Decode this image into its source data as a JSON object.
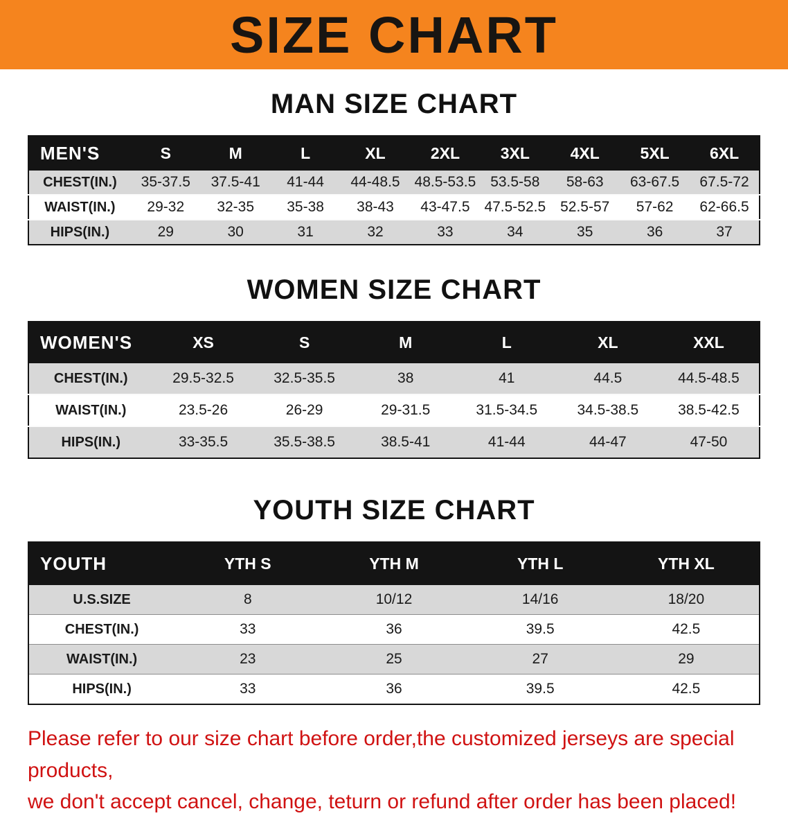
{
  "banner": {
    "title": "SIZE CHART",
    "bg_color": "#f5841e"
  },
  "sections": {
    "men": {
      "heading": "MAN SIZE CHART",
      "table": {
        "header_label": "MEN'S",
        "columns": [
          "S",
          "M",
          "L",
          "XL",
          "2XL",
          "3XL",
          "4XL",
          "5XL",
          "6XL"
        ],
        "rows": [
          {
            "label": "CHEST(IN.)",
            "values": [
              "35-37.5",
              "37.5-41",
              "41-44",
              "44-48.5",
              "48.5-53.5",
              "53.5-58",
              "58-63",
              "63-67.5",
              "67.5-72"
            ]
          },
          {
            "label": "WAIST(IN.)",
            "values": [
              "29-32",
              "32-35",
              "35-38",
              "38-43",
              "43-47.5",
              "47.5-52.5",
              "52.5-57",
              "57-62",
              "62-66.5"
            ]
          },
          {
            "label": "HIPS(IN.)",
            "values": [
              "29",
              "30",
              "31",
              "32",
              "33",
              "34",
              "35",
              "36",
              "37"
            ]
          }
        ]
      }
    },
    "women": {
      "heading": "WOMEN SIZE CHART",
      "table": {
        "header_label": "WOMEN'S",
        "columns": [
          "XS",
          "S",
          "M",
          "L",
          "XL",
          "XXL"
        ],
        "rows": [
          {
            "label": "CHEST(IN.)",
            "values": [
              "29.5-32.5",
              "32.5-35.5",
              "38",
              "41",
              "44.5",
              "44.5-48.5"
            ]
          },
          {
            "label": "WAIST(IN.)",
            "values": [
              "23.5-26",
              "26-29",
              "29-31.5",
              "31.5-34.5",
              "34.5-38.5",
              "38.5-42.5"
            ]
          },
          {
            "label": "HIPS(IN.)",
            "values": [
              "33-35.5",
              "35.5-38.5",
              "38.5-41",
              "41-44",
              "44-47",
              "47-50"
            ]
          }
        ]
      }
    },
    "youth": {
      "heading": "YOUTH SIZE CHART",
      "table": {
        "header_label": "YOUTH",
        "columns": [
          "YTH S",
          "YTH M",
          "YTH L",
          "YTH XL"
        ],
        "rows": [
          {
            "label": "U.S.SIZE",
            "values": [
              "8",
              "10/12",
              "14/16",
              "18/20"
            ]
          },
          {
            "label": "CHEST(IN.)",
            "values": [
              "33",
              "36",
              "39.5",
              "42.5"
            ]
          },
          {
            "label": "WAIST(IN.)",
            "values": [
              "23",
              "25",
              "27",
              "29"
            ]
          },
          {
            "label": "HIPS(IN.)",
            "values": [
              "33",
              "36",
              "39.5",
              "42.5"
            ]
          }
        ]
      }
    }
  },
  "disclaimer": {
    "line1": "Please refer to our size chart before order,the customized jerseys are special products,",
    "line2": "we don't accept cancel, change, teturn or refund after order has been placed!",
    "color": "#d01212"
  }
}
